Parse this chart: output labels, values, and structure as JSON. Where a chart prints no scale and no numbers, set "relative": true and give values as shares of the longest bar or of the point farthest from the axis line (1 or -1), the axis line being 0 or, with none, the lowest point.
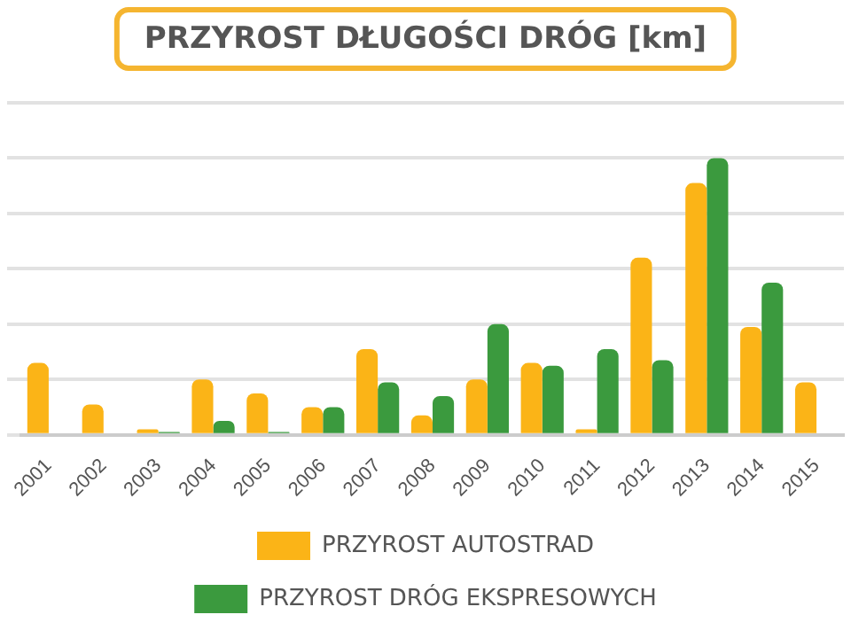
{
  "chart_data": {
    "type": "bar",
    "title": "PRZYROST DŁUGOŚCI DRÓG [km]",
    "relative": true,
    "grid": "y",
    "legend": "bottom",
    "categories": [
      "2001",
      "2002",
      "2003",
      "2004",
      "2005",
      "2006",
      "2007",
      "2008",
      "2009",
      "2010",
      "2011",
      "2012",
      "2013",
      "2014",
      "2015"
    ],
    "series": [
      {
        "name": "PRZYROST AUTOSTRAD",
        "color": "#fbb417",
        "values": [
          0.26,
          0.11,
          0.02,
          0.2,
          0.15,
          0.1,
          0.31,
          0.07,
          0.2,
          0.26,
          0.02,
          0.64,
          0.91,
          0.39,
          0.19
        ]
      },
      {
        "name": "PRZYROST DRÓG EKSPRESOWYCH",
        "color": "#3b9a3e",
        "values": [
          0,
          0,
          0.01,
          0.05,
          0.01,
          0.1,
          0.19,
          0.14,
          0.4,
          0.25,
          0.31,
          0.27,
          1,
          0.55,
          null
        ]
      }
    ]
  }
}
